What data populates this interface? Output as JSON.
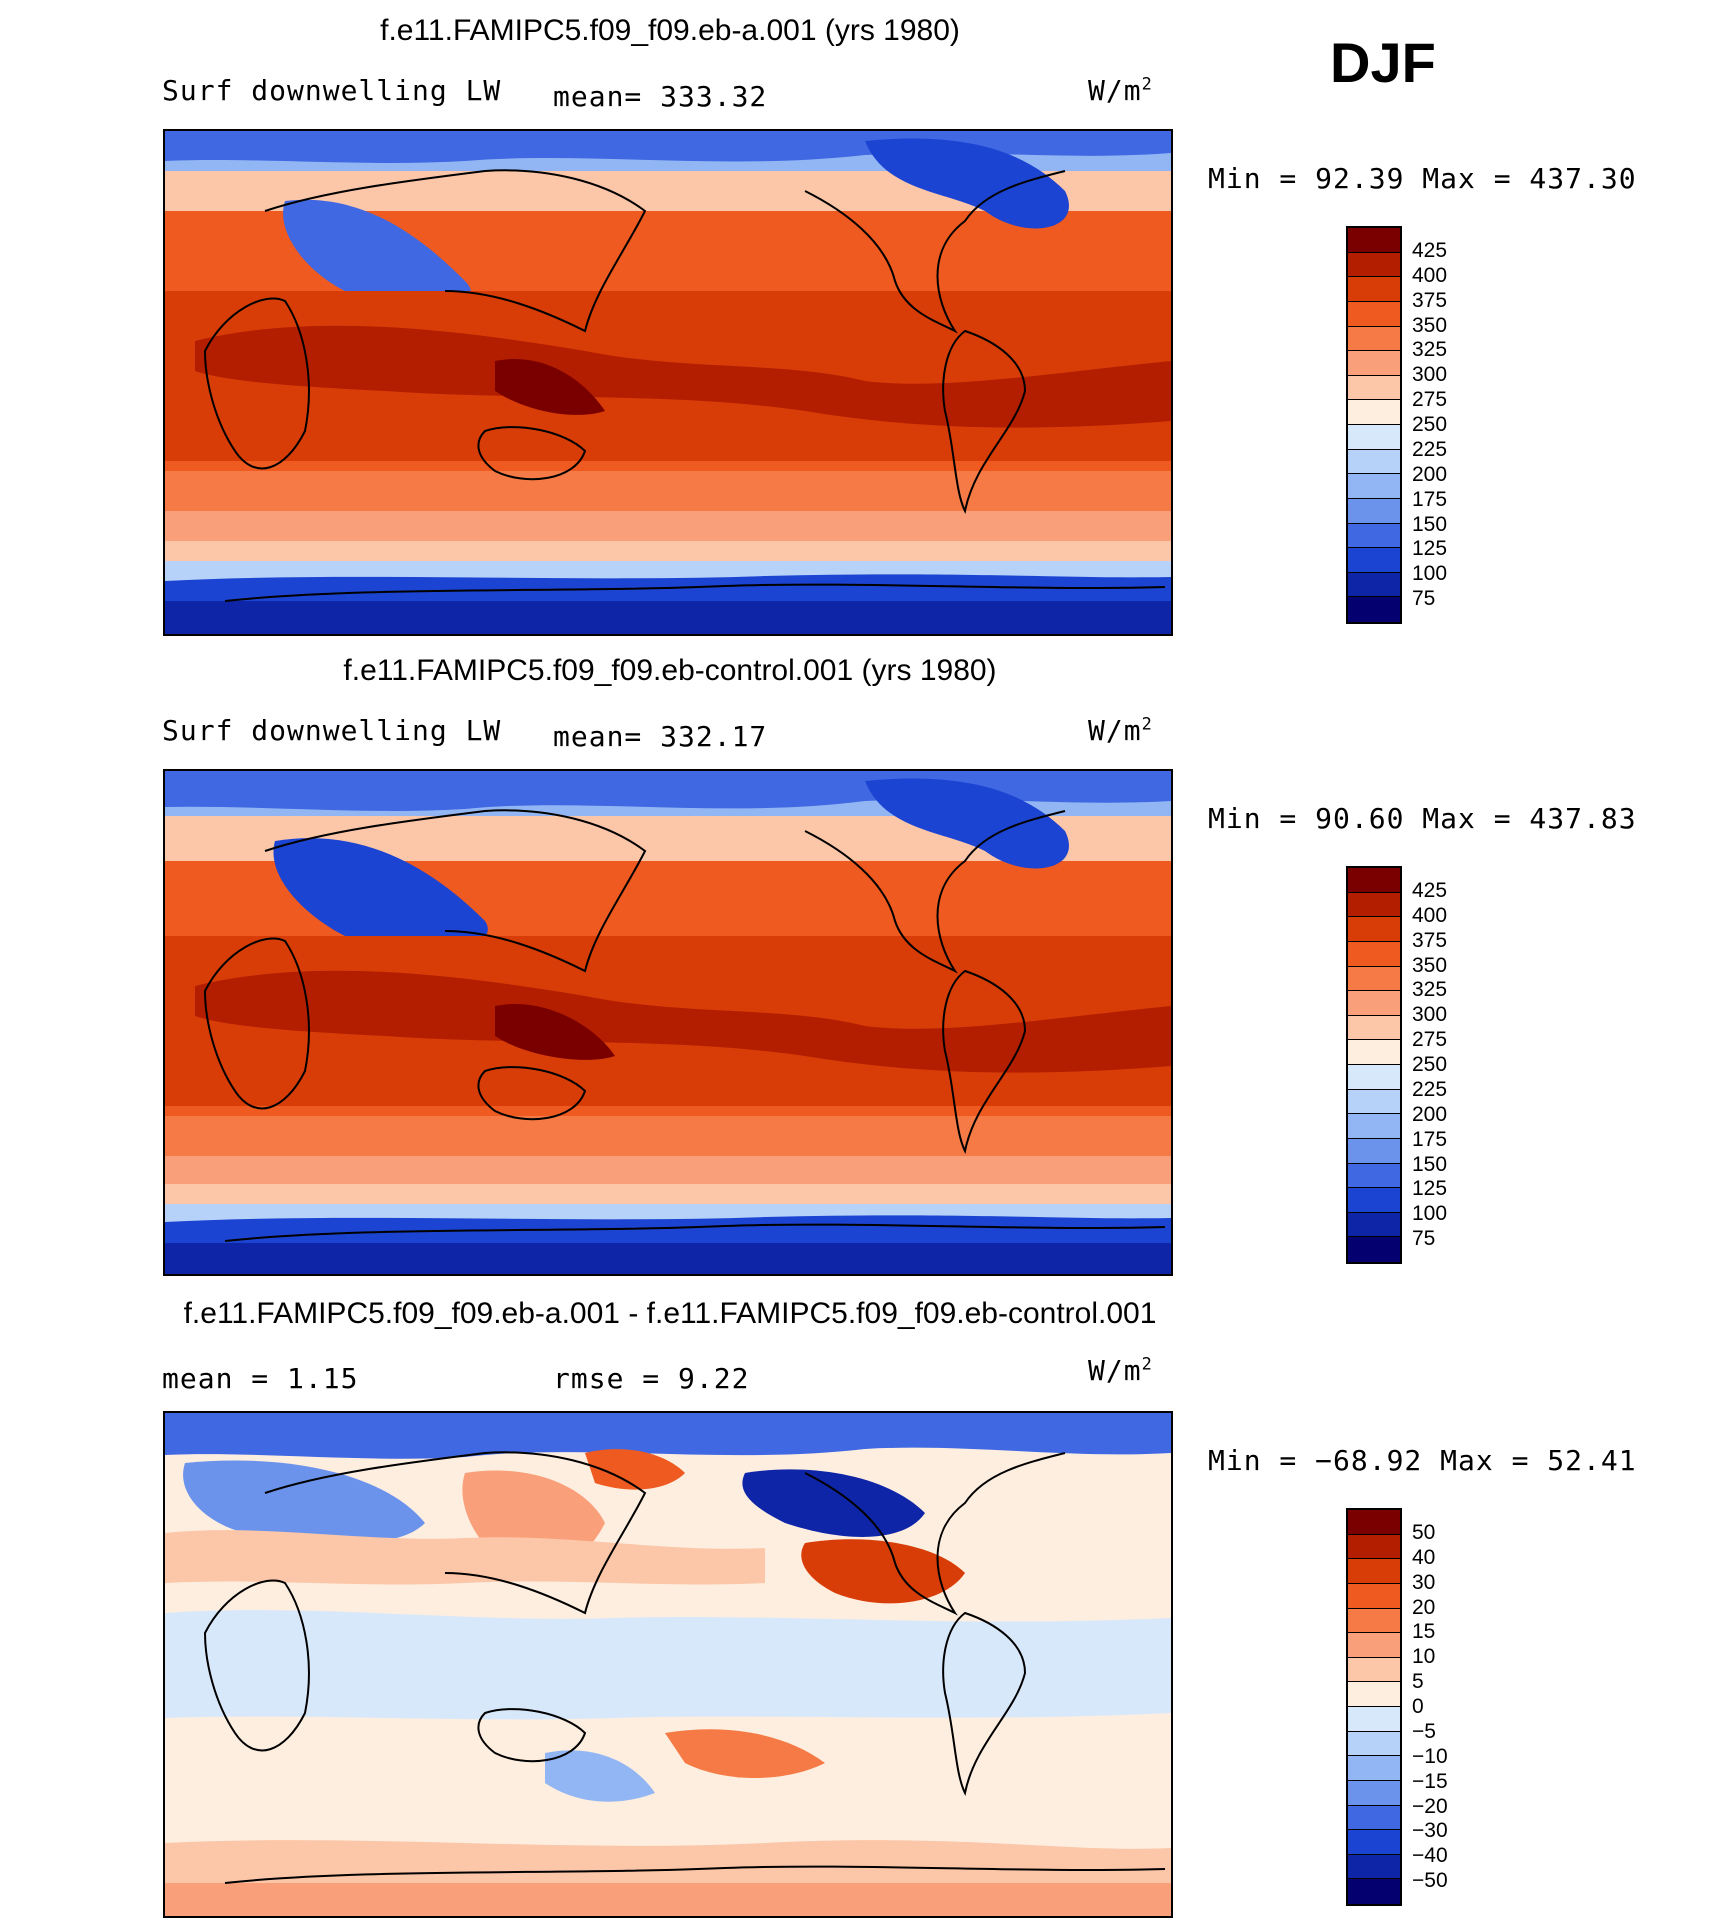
{
  "season": "DJF",
  "chart_data": [
    {
      "type": "heatmap",
      "title": "f.e11.FAMIPC5.f09_f09.eb-a.001 (yrs 1980)",
      "left_label": "Surf downwelling LW",
      "center_label": "mean= 333.32",
      "units_label": "W/m",
      "units_sup": "2",
      "minmax_label": "Min =   92.39  Max =  437.30",
      "min": 92.39,
      "max": 437.3,
      "mean": 333.32,
      "colorbar_levels": [
        "425",
        "400",
        "375",
        "350",
        "325",
        "300",
        "275",
        "250",
        "225",
        "200",
        "175",
        "150",
        "125",
        "100",
        "75"
      ],
      "colorbar_colors": [
        "#7a0000",
        "#b41e00",
        "#d83d08",
        "#ee5a20",
        "#f57a45",
        "#f9a07a",
        "#fcc6a8",
        "#fdeee0",
        "#d8e8fb",
        "#b7d2f8",
        "#92b6f3",
        "#6b93ec",
        "#4068e2",
        "#1c44d2",
        "#0f25a8",
        "#040070"
      ]
    },
    {
      "type": "heatmap",
      "title": "f.e11.FAMIPC5.f09_f09.eb-control.001 (yrs 1980)",
      "left_label": "Surf downwelling LW",
      "center_label": "mean= 332.17",
      "units_label": "W/m",
      "units_sup": "2",
      "minmax_label": "Min =   90.60  Max =  437.83",
      "min": 90.6,
      "max": 437.83,
      "mean": 332.17,
      "colorbar_levels": [
        "425",
        "400",
        "375",
        "350",
        "325",
        "300",
        "275",
        "250",
        "225",
        "200",
        "175",
        "150",
        "125",
        "100",
        "75"
      ],
      "colorbar_colors": [
        "#7a0000",
        "#b41e00",
        "#d83d08",
        "#ee5a20",
        "#f57a45",
        "#f9a07a",
        "#fcc6a8",
        "#fdeee0",
        "#d8e8fb",
        "#b7d2f8",
        "#92b6f3",
        "#6b93ec",
        "#4068e2",
        "#1c44d2",
        "#0f25a8",
        "#040070"
      ]
    },
    {
      "type": "heatmap",
      "title": "f.e11.FAMIPC5.f09_f09.eb-a.001 - f.e11.FAMIPC5.f09_f09.eb-control.001",
      "left_label": "mean =    1.15",
      "center_label": "rmse =    9.22",
      "units_label": "W/m",
      "units_sup": "2",
      "minmax_label": "Min = −68.92  Max =   52.41",
      "min": -68.92,
      "max": 52.41,
      "mean": 1.15,
      "rmse": 9.22,
      "colorbar_levels": [
        "50",
        "40",
        "30",
        "20",
        "15",
        "10",
        "5",
        "0",
        "−5",
        "−10",
        "−15",
        "−20",
        "−30",
        "−40",
        "−50"
      ],
      "colorbar_colors": [
        "#7a0000",
        "#b41e00",
        "#d83d08",
        "#ee5a20",
        "#f57a45",
        "#f9a07a",
        "#fcc6a8",
        "#fdeee0",
        "#d8e8fb",
        "#b7d2f8",
        "#92b6f3",
        "#6b93ec",
        "#4068e2",
        "#1c44d2",
        "#0f25a8",
        "#040070"
      ]
    }
  ]
}
